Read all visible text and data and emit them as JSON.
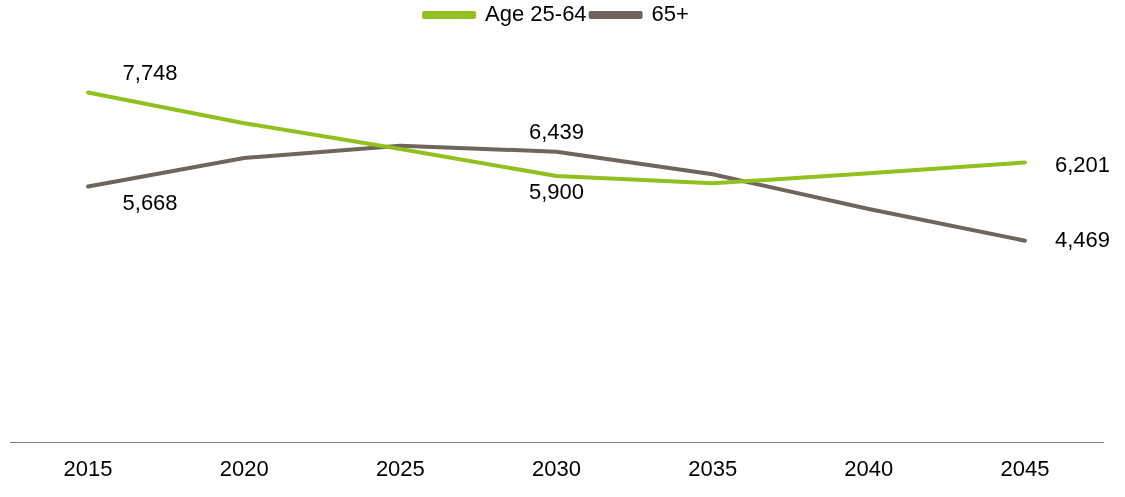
{
  "chart_data": {
    "type": "line",
    "categories": [
      "2015",
      "2020",
      "2025",
      "2030",
      "2035",
      "2040",
      "2045"
    ],
    "series": [
      {
        "name": "Age 25-64",
        "color": "#92c01f",
        "values": [
          7748,
          7070,
          6500,
          5900,
          5740,
          5960,
          6201
        ],
        "value_labels": [
          "7,748",
          null,
          null,
          "5,900",
          null,
          null,
          "6,201"
        ]
      },
      {
        "name": "65+",
        "color": "#6e665b",
        "values": [
          5668,
          6300,
          6570,
          6439,
          5940,
          5170,
          4469
        ],
        "value_labels": [
          "5,668",
          null,
          null,
          "6,439",
          null,
          null,
          "4,469"
        ]
      }
    ],
    "tick_labels": "x",
    "grid": false,
    "legend": "top",
    "marker": "none",
    "line_style": "solid"
  }
}
